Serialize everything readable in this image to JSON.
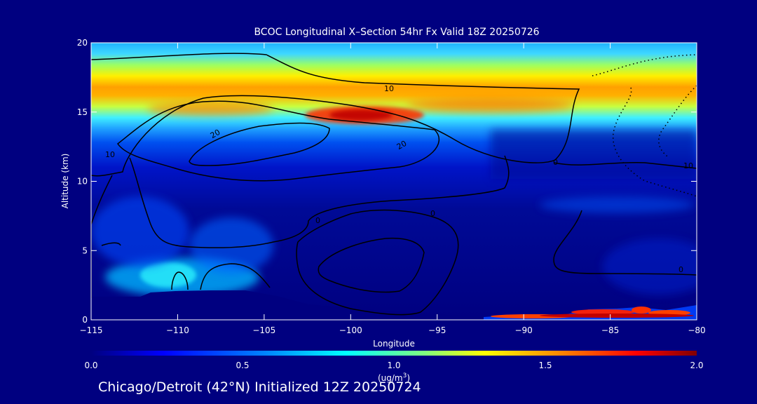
{
  "chart_data": {
    "type": "heatmap",
    "title": "BCOC Longitudinal X–Section 54hr  Fx Valid 18Z 20250726",
    "xlabel": "Longitude",
    "ylabel": "Altitude (km)",
    "xlim": [
      -115,
      -80
    ],
    "ylim": [
      0,
      20
    ],
    "x_ticks": [
      -115,
      -110,
      -105,
      -100,
      -95,
      -90,
      -85,
      -80
    ],
    "x_tick_labels": [
      "−115",
      "−110",
      "−105",
      "−100",
      "−95",
      "−90",
      "−85",
      "−80"
    ],
    "y_ticks": [
      0,
      5,
      10,
      15,
      20
    ],
    "y_tick_labels": [
      "0",
      "5",
      "10",
      "15",
      "20"
    ],
    "colorbar": {
      "range": [
        0.0,
        2.0
      ],
      "tick_values": [
        0.0,
        0.5,
        1.0,
        1.5,
        2.0
      ],
      "tick_labels": [
        "0.0",
        "0.5",
        "1.0",
        "1.5",
        "2.0"
      ],
      "units_prefix": "(ug/m",
      "units_sup": "3",
      "units_suffix": ")",
      "colormap": [
        "#000080",
        "#0000ff",
        "#0080ff",
        "#00ffff",
        "#80ff80",
        "#ffff00",
        "#ff8000",
        "#ff0000",
        "#800000"
      ]
    },
    "fill_features": [
      {
        "name": "upper-level maximum",
        "lon": [
          -115,
          -82
        ],
        "alt": [
          13.5,
          17
        ],
        "value": 1.4
      },
      {
        "name": "core maximum",
        "lon": [
          -102,
          -96
        ],
        "alt": [
          14.5,
          15.6
        ],
        "value": 2.0
      },
      {
        "name": "surface plume",
        "lon": [
          -93,
          -80
        ],
        "alt": [
          0,
          1
        ],
        "value": 1.9
      }
    ],
    "contour_labels": [
      "10",
      "20",
      "20",
      "10",
      "0",
      "0",
      "0",
      "0",
      "10"
    ]
  },
  "footer": "Chicago/Detroit (42°N) Initialized 12Z 20250724",
  "colors": {
    "background": "#000080",
    "text": "#ffffff",
    "contour": "#000000"
  }
}
